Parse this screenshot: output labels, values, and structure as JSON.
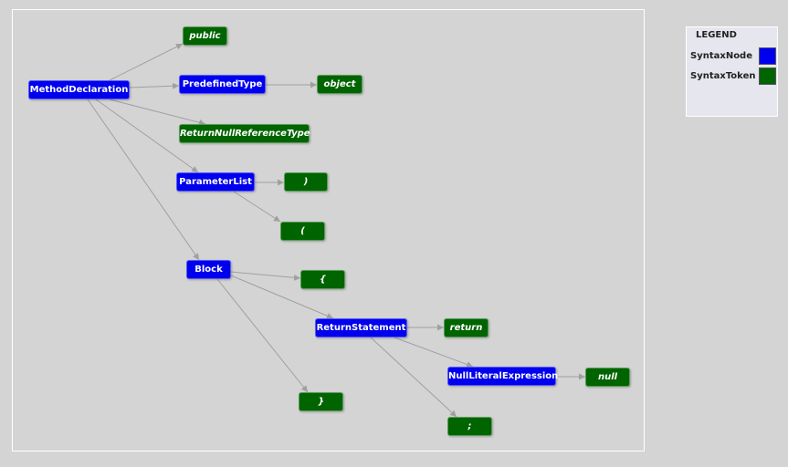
{
  "colors": {
    "syntax_node": "#0000ee",
    "syntax_token": "#006400",
    "edge": "#a0a0a0",
    "background": "#d4d4d4"
  },
  "legend": {
    "title": "LEGEND",
    "entries": [
      {
        "label": "SyntaxNode",
        "color": "#0000ee"
      },
      {
        "label": "SyntaxToken",
        "color": "#006400"
      }
    ]
  },
  "nodes": [
    {
      "id": "method_declaration",
      "label": "MethodDeclaration",
      "kind": "SyntaxNode"
    },
    {
      "id": "public_token",
      "label": "public",
      "kind": "SyntaxToken"
    },
    {
      "id": "predefined_type",
      "label": "PredefinedType",
      "kind": "SyntaxNode"
    },
    {
      "id": "object_token",
      "label": "object",
      "kind": "SyntaxToken"
    },
    {
      "id": "return_null_reference_type",
      "label": "ReturnNullReferenceType",
      "kind": "SyntaxToken"
    },
    {
      "id": "parameter_list",
      "label": "ParameterList",
      "kind": "SyntaxNode"
    },
    {
      "id": "close_paren_token",
      "label": ")",
      "kind": "SyntaxToken"
    },
    {
      "id": "open_paren_token",
      "label": "(",
      "kind": "SyntaxToken"
    },
    {
      "id": "block",
      "label": "Block",
      "kind": "SyntaxNode"
    },
    {
      "id": "open_brace_token",
      "label": "{",
      "kind": "SyntaxToken"
    },
    {
      "id": "return_statement",
      "label": "ReturnStatement",
      "kind": "SyntaxNode"
    },
    {
      "id": "return_token",
      "label": "return",
      "kind": "SyntaxToken"
    },
    {
      "id": "null_literal_expression",
      "label": "NullLiteralExpression",
      "kind": "SyntaxNode"
    },
    {
      "id": "null_token",
      "label": "null",
      "kind": "SyntaxToken"
    },
    {
      "id": "close_brace_token",
      "label": "}",
      "kind": "SyntaxToken"
    },
    {
      "id": "semicolon_token",
      "label": ";",
      "kind": "SyntaxToken"
    }
  ],
  "edges": [
    [
      "method_declaration",
      "public_token"
    ],
    [
      "method_declaration",
      "predefined_type"
    ],
    [
      "method_declaration",
      "return_null_reference_type"
    ],
    [
      "method_declaration",
      "parameter_list"
    ],
    [
      "method_declaration",
      "block"
    ],
    [
      "predefined_type",
      "object_token"
    ],
    [
      "parameter_list",
      "close_paren_token"
    ],
    [
      "parameter_list",
      "open_paren_token"
    ],
    [
      "block",
      "open_brace_token"
    ],
    [
      "block",
      "return_statement"
    ],
    [
      "block",
      "close_brace_token"
    ],
    [
      "return_statement",
      "return_token"
    ],
    [
      "return_statement",
      "null_literal_expression"
    ],
    [
      "return_statement",
      "semicolon_token"
    ],
    [
      "null_literal_expression",
      "null_token"
    ]
  ]
}
